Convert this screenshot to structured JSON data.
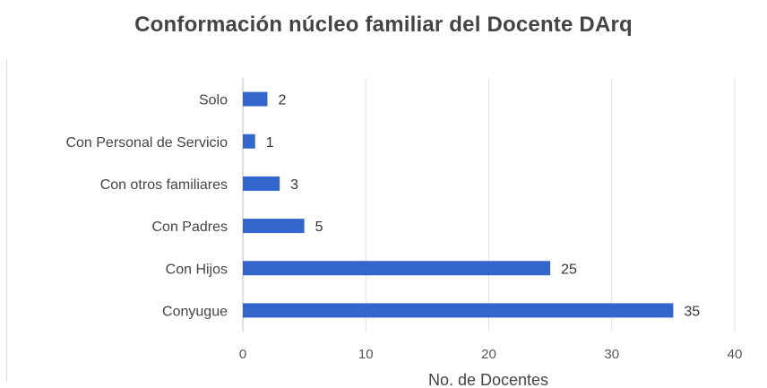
{
  "chart_data": {
    "type": "bar",
    "orientation": "horizontal",
    "title": "Conformación núcleo familiar del Docente DArq",
    "xlabel": "No. de Docentes",
    "ylabel": "",
    "categories": [
      "Solo",
      "Con Personal de Servicio",
      "Con otros familiares",
      "Con Padres",
      "Con Hijos",
      "Conyugue"
    ],
    "values": [
      2,
      1,
      3,
      5,
      25,
      35
    ],
    "xlim": [
      0,
      40
    ],
    "ticks": [
      0,
      10,
      20,
      30,
      40
    ],
    "grid": true,
    "legend": "none",
    "bar_color": "#3366cc",
    "grid_color": "#e0e0e0"
  }
}
